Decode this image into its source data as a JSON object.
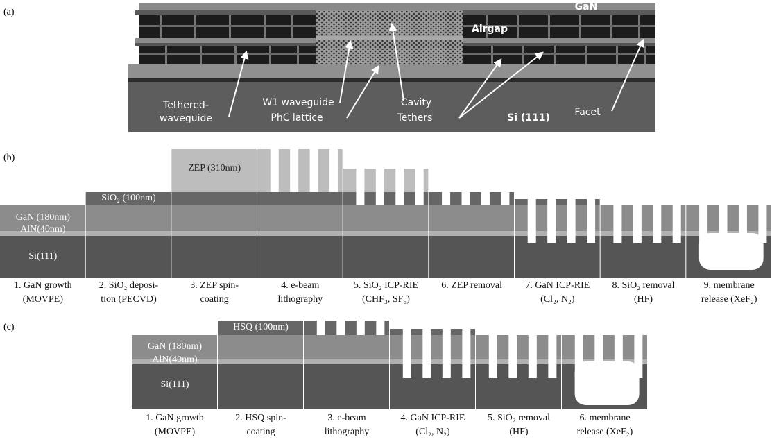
{
  "panel_a": {
    "label": "(a)",
    "annotations": [
      "GaN",
      "Airgap",
      "Tethered-",
      "waveguide",
      "W1 waveguide",
      "PhC lattice",
      "Cavity",
      "Tethers",
      "Si (111)",
      "Facet"
    ]
  },
  "panel_b": {
    "label": "(b)",
    "layers": [
      "GaN (180nm)",
      "AlN(40nm)",
      "Si(111)",
      "SiO₂ (100nm)",
      "ZEP (310nm)"
    ],
    "steps": [
      [
        "1. GaN growth",
        "(MOVPE)"
      ],
      [
        "2. SiO₂ deposi-",
        "tion (PECVD)"
      ],
      [
        "3. ZEP spin-",
        "coating"
      ],
      [
        "4. e-beam",
        "lithography"
      ],
      [
        "5. SiO₂ ICP-RIE",
        "(CHF₃, SF₆)"
      ],
      [
        "6. ZEP removal"
      ],
      [
        "7. GaN ICP-RIE",
        "(Cl₂, N₂)"
      ],
      [
        "8. SiO₂ removal",
        "(HF)"
      ],
      [
        "9. membrane",
        "release (XeF₂)"
      ]
    ]
  },
  "panel_c": {
    "label": "(c)",
    "layers": [
      "GaN (180nm)",
      "AlN(40nm)",
      "Si(111)",
      "HSQ (100nm)"
    ],
    "steps": [
      [
        "1. GaN growth",
        "(MOVPE)"
      ],
      [
        "2. HSQ spin-",
        "coating"
      ],
      [
        "3. e-beam",
        "lithography"
      ],
      [
        "4. GaN ICP-RIE",
        "(Cl₂, N₂)"
      ],
      [
        "5. SiO₂ removal",
        "(HF)"
      ],
      [
        "6. membrane",
        "release (XeF₂)"
      ]
    ]
  }
}
